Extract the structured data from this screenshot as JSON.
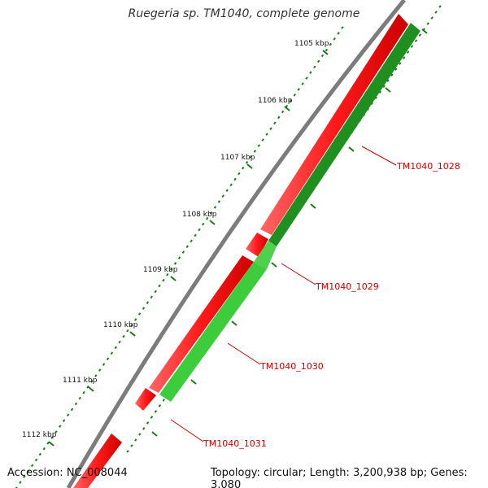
{
  "title": "Ruegeria sp. TM1040, complete genome",
  "footer": {
    "accession": "Accession: NC_008044",
    "summary": "Topology: circular; Length: 3,200,938 bp; Genes: 3,080"
  },
  "scale": {
    "ticks": [
      {
        "kbp": 1105,
        "label": "1105 kbp"
      },
      {
        "kbp": 1106,
        "label": "1106 kbp"
      },
      {
        "kbp": 1107,
        "label": "1107 kbp"
      },
      {
        "kbp": 1108,
        "label": "1108 kbp"
      },
      {
        "kbp": 1109,
        "label": "1109 kbp"
      },
      {
        "kbp": 1110,
        "label": "1110 kbp"
      },
      {
        "kbp": 1111,
        "label": "1111 kbp"
      },
      {
        "kbp": 1112,
        "label": "1112 kbp"
      }
    ]
  },
  "genes": [
    {
      "id": "TM1040_1028",
      "label": "TM1040_1028"
    },
    {
      "id": "TM1040_1029",
      "label": "TM1040_1029"
    },
    {
      "id": "TM1040_1030",
      "label": "TM1040_1030"
    },
    {
      "id": "TM1040_1031",
      "label": "TM1040_1031"
    }
  ],
  "colors": {
    "backbone": "#8a8a8a",
    "reverse_strand": "#ff1a1a",
    "forward_strand": "#33cc33",
    "forward_strand_dark": "#1e8f1e",
    "tick": "#1a7a1a",
    "gene_label": "#cc0000"
  }
}
